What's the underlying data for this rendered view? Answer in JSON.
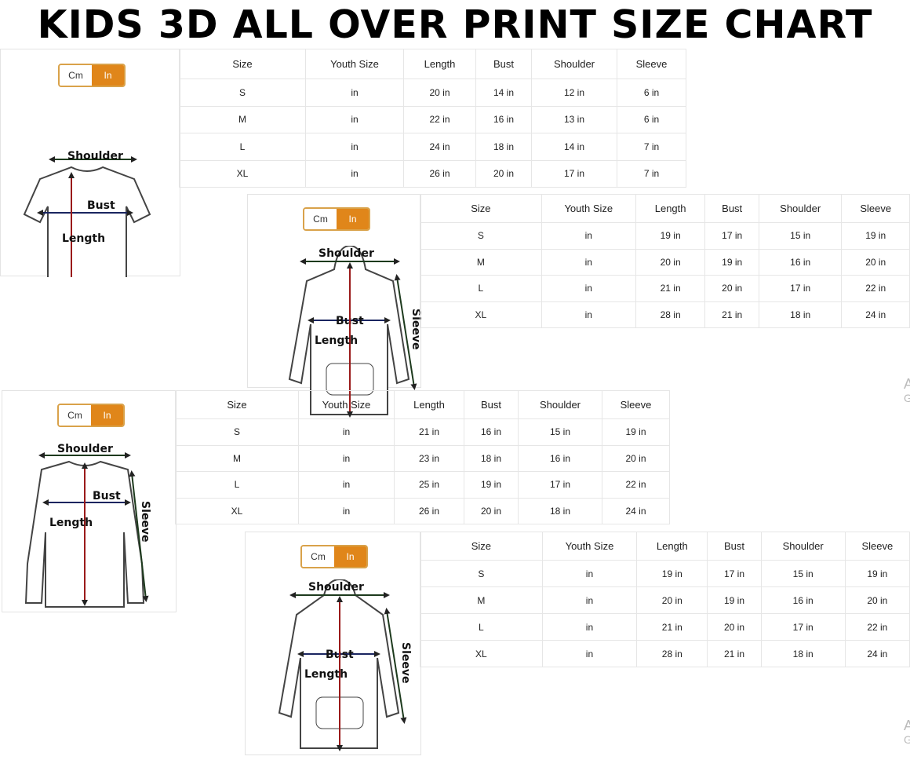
{
  "title": "KIDS 3D ALL OVER PRINT SIZE CHART",
  "unit_toggle": {
    "cm": "Cm",
    "in": "In",
    "selected": "In",
    "accent": "#e0861a"
  },
  "labels": {
    "shoulder": "Shoulder",
    "bust": "Bust",
    "length": "Length",
    "sleeve": "Sleeve"
  },
  "watermark": [
    {
      "line1": "A",
      "line2": "G"
    },
    {
      "line1": "A",
      "line2": "G"
    }
  ],
  "charts": [
    {
      "garment": "t-shirt",
      "headers": [
        "Size",
        "Youth Size",
        "Length",
        "Bust",
        "Shoulder",
        "Sleeve"
      ],
      "rows": [
        [
          "S",
          "in",
          "20 in",
          "14 in",
          "12 in",
          "6 in"
        ],
        [
          "M",
          "in",
          "22 in",
          "16 in",
          "13 in",
          "6 in"
        ],
        [
          "L",
          "in",
          "24 in",
          "18 in",
          "14 in",
          "7 in"
        ],
        [
          "XL",
          "in",
          "26 in",
          "20 in",
          "17 in",
          "7 in"
        ]
      ]
    },
    {
      "garment": "zip-hoodie",
      "headers": [
        "Size",
        "Youth Size",
        "Length",
        "Bust",
        "Shoulder",
        "Sleeve"
      ],
      "rows": [
        [
          "S",
          "in",
          "19 in",
          "17 in",
          "15 in",
          "19 in"
        ],
        [
          "M",
          "in",
          "20 in",
          "19 in",
          "16 in",
          "20 in"
        ],
        [
          "L",
          "in",
          "21 in",
          "20 in",
          "17 in",
          "22 in"
        ],
        [
          "XL",
          "in",
          "28 in",
          "21 in",
          "18 in",
          "24 in"
        ]
      ]
    },
    {
      "garment": "long-sleeve-shirt",
      "headers": [
        "Size",
        "Youth Size",
        "Length",
        "Bust",
        "Shoulder",
        "Sleeve"
      ],
      "rows": [
        [
          "S",
          "in",
          "21 in",
          "16 in",
          "15 in",
          "19 in"
        ],
        [
          "M",
          "in",
          "23 in",
          "18 in",
          "16 in",
          "20 in"
        ],
        [
          "L",
          "in",
          "25 in",
          "19 in",
          "17 in",
          "22 in"
        ],
        [
          "XL",
          "in",
          "26 in",
          "20 in",
          "18 in",
          "24 in"
        ]
      ]
    },
    {
      "garment": "pullover-hoodie",
      "headers": [
        "Size",
        "Youth Size",
        "Length",
        "Bust",
        "Shoulder",
        "Sleeve"
      ],
      "rows": [
        [
          "S",
          "in",
          "19 in",
          "17 in",
          "15 in",
          "19 in"
        ],
        [
          "M",
          "in",
          "20 in",
          "19 in",
          "16 in",
          "20 in"
        ],
        [
          "L",
          "in",
          "21 in",
          "20 in",
          "17 in",
          "22 in"
        ],
        [
          "XL",
          "in",
          "28 in",
          "21 in",
          "18 in",
          "24 in"
        ]
      ]
    }
  ]
}
